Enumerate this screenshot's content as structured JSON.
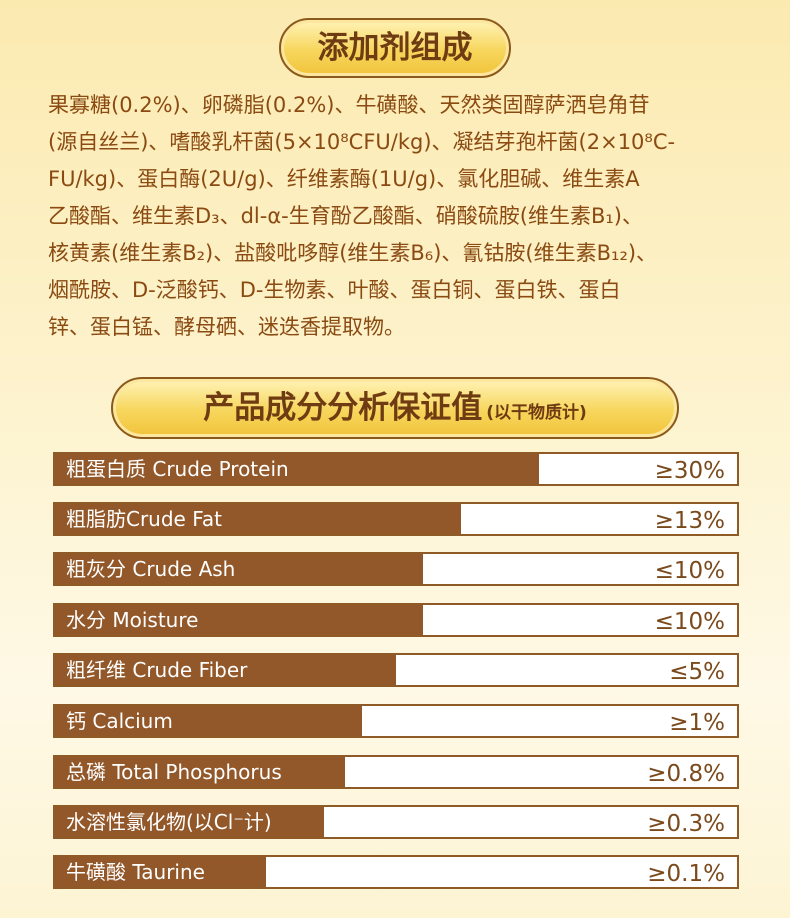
{
  "section1": {
    "title": "添加剂组成",
    "lines": [
      "果寡糖(0.2%)、卵磷脂(0.2%)、牛磺酸、天然类固醇萨洒皂角苷",
      "(源自丝兰)、嗜酸乳杆菌(5×10⁸CFU/kg)、凝结芽孢杆菌(2×10⁸C-",
      "FU/kg)、蛋白酶(2U/g)、纤维素酶(1U/g)、氯化胆碱、维生素A",
      "乙酸酯、维生素D₃、dl-α-生育酚乙酸酯、硝酸硫胺(维生素B₁)、",
      "核黄素(维生素B₂)、盐酸吡哆醇(维生素B₆)、氰钴胺(维生素B₁₂)、",
      "烟酰胺、D-泛酸钙、D-生物素、叶酸、蛋白铜、蛋白铁、蛋白",
      "锌、蛋白锰、酵母硒、迷迭香提取物。"
    ]
  },
  "section2": {
    "title": "产品成分分析保证值",
    "subtitle": "(以干物质计)",
    "rows": [
      {
        "label": "粗蛋白质 Crude Protein",
        "value": "≥30%",
        "bar_fraction": 0.71
      },
      {
        "label": "粗脂肪Crude Fat",
        "value": "≥13%",
        "bar_fraction": 0.595
      },
      {
        "label": "粗灰分 Crude Ash",
        "value": "≤10%",
        "bar_fraction": 0.54
      },
      {
        "label": "水分 Moisture",
        "value": "≤10%",
        "bar_fraction": 0.54
      },
      {
        "label": "粗纤维 Crude Fiber",
        "value": "≤5%",
        "bar_fraction": 0.5
      },
      {
        "label": "钙 Calcium",
        "value": "≥1%",
        "bar_fraction": 0.45
      },
      {
        "label": "总磷 Total Phosphorus",
        "value": "≥0.8%",
        "bar_fraction": 0.425
      },
      {
        "label": "水溶性氯化物(以Cl⁻计)",
        "value": "≥0.3%",
        "bar_fraction": 0.395
      },
      {
        "label": "牛磺酸 Taurine",
        "value": "≥0.1%",
        "bar_fraction": 0.31
      }
    ]
  },
  "colors": {
    "bar": "#93582a",
    "text_brown": "#8a4a12",
    "pill_fill": "#f5d04e",
    "pill_text": "#6e3b12"
  }
}
